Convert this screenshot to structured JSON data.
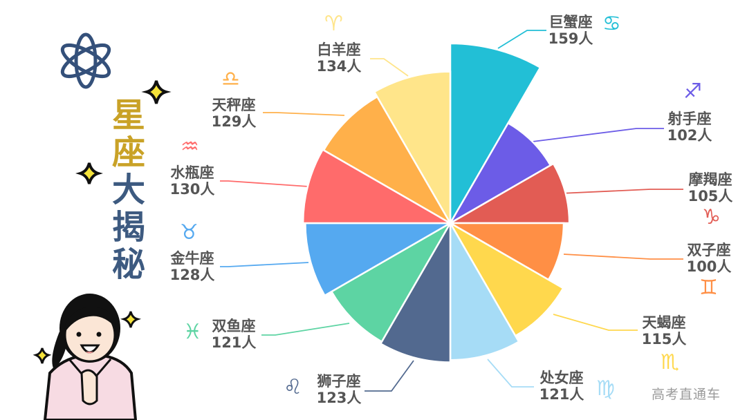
{
  "title": {
    "chars": [
      "星",
      "座",
      "大",
      "揭",
      "秘"
    ],
    "colors": [
      "#c9a227",
      "#c9a227",
      "#3d5a80",
      "#3d5a80",
      "#3d5a80"
    ]
  },
  "watermark": "高考直通车",
  "unit": "人",
  "chart_data": {
    "type": "pie",
    "subtype": "nightingale-rose",
    "title": "星座大揭秘",
    "start_angle_deg": 0,
    "direction": "clockwise",
    "categories": [
      "巨蟹座",
      "射手座",
      "摩羯座",
      "双子座",
      "天蝎座",
      "处女座",
      "狮子座",
      "双鱼座",
      "金牛座",
      "水瓶座",
      "天秤座",
      "白羊座"
    ],
    "values": [
      159,
      102,
      105,
      100,
      115,
      121,
      123,
      121,
      128,
      130,
      129,
      134
    ],
    "colors": [
      "#22bfd6",
      "#6c5ce7",
      "#e25c54",
      "#ff8f45",
      "#ffd84d",
      "#a6dcf6",
      "#52698f",
      "#5dd4a3",
      "#55a9f0",
      "#ff6b6b",
      "#ffb04a",
      "#ffe58a"
    ],
    "labels": [
      {
        "name": "巨蟹座",
        "value": "159人",
        "icon": "cancer-icon",
        "glyph": "♋"
      },
      {
        "name": "射手座",
        "value": "102人",
        "icon": "sagittarius-icon",
        "glyph": "♐"
      },
      {
        "name": "摩羯座",
        "value": "105人",
        "icon": "capricorn-icon",
        "glyph": "♑"
      },
      {
        "name": "双子座",
        "value": "100人",
        "icon": "gemini-icon",
        "glyph": "♊"
      },
      {
        "name": "天蝎座",
        "value": "115人",
        "icon": "scorpio-icon",
        "glyph": "♏"
      },
      {
        "name": "处女座",
        "value": "121人",
        "icon": "virgo-icon",
        "glyph": "♍"
      },
      {
        "name": "狮子座",
        "value": "123人",
        "icon": "leo-icon",
        "glyph": "♌"
      },
      {
        "name": "双鱼座",
        "value": "121人",
        "icon": "pisces-icon",
        "glyph": "♓"
      },
      {
        "name": "金牛座",
        "value": "128人",
        "icon": "taurus-icon",
        "glyph": "♉"
      },
      {
        "name": "水瓶座",
        "value": "130人",
        "icon": "aquarius-icon",
        "glyph": "♒"
      },
      {
        "name": "天秤座",
        "value": "129人",
        "icon": "libra-icon",
        "glyph": "♎"
      },
      {
        "name": "白羊座",
        "value": "134人",
        "icon": "aries-icon",
        "glyph": "♈"
      }
    ]
  }
}
